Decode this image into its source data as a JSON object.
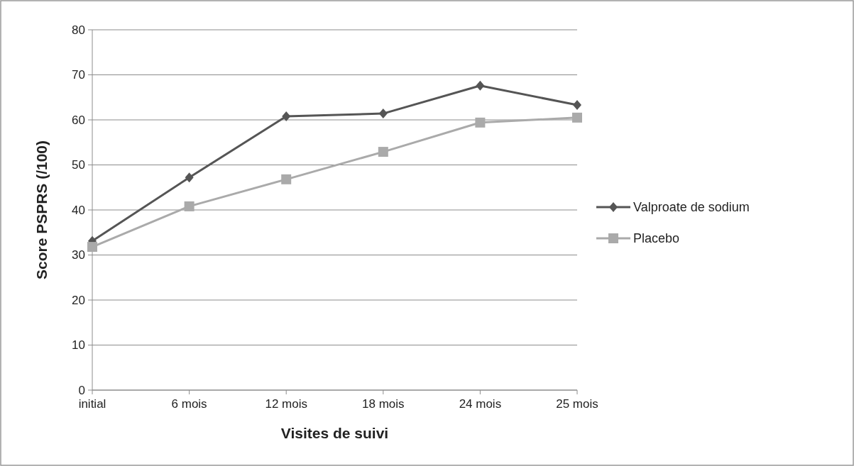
{
  "chart_data": {
    "type": "line",
    "xlabel": "Visites de suivi",
    "ylabel": "Score PSPRS (/100)",
    "categories": [
      "initial",
      "6 mois",
      "12 mois",
      "18 mois",
      "24 mois",
      "25 mois"
    ],
    "series": [
      {
        "name": "Valproate de sodium",
        "color": "#555555",
        "marker": "diamond",
        "values": [
          33.1,
          47.2,
          60.8,
          61.4,
          67.6,
          63.3
        ]
      },
      {
        "name": "Placebo",
        "color": "#aaaaaa",
        "marker": "square",
        "values": [
          31.8,
          40.8,
          46.8,
          52.9,
          59.4,
          60.5
        ]
      }
    ],
    "ylim": [
      0,
      80
    ],
    "yticks": [
      0,
      10,
      20,
      30,
      40,
      50,
      60,
      70,
      80
    ],
    "grid": "y",
    "legend": "right"
  }
}
